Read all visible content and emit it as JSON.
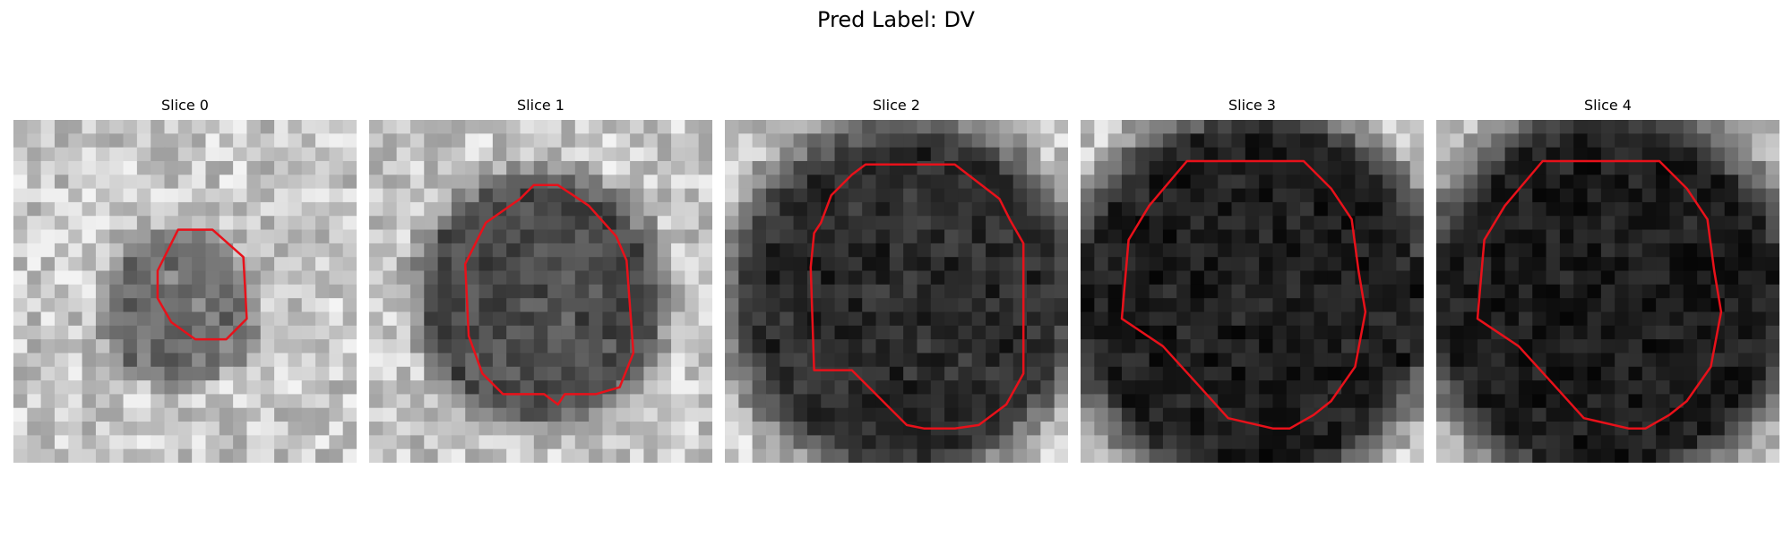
{
  "figure": {
    "title": "Pred Label: DV",
    "contour_color": "#e8111a",
    "colormap": "grayscale"
  },
  "slices": [
    {
      "title": "Slice 0",
      "blob_radius": 0.2,
      "blob_cx": 0.48,
      "blob_cy": 0.55,
      "darkness": 0.45,
      "seed": 11,
      "contour": [
        [
          0.48,
          0.32
        ],
        [
          0.58,
          0.32
        ],
        [
          0.67,
          0.4
        ],
        [
          0.68,
          0.58
        ],
        [
          0.62,
          0.64
        ],
        [
          0.53,
          0.64
        ],
        [
          0.46,
          0.59
        ],
        [
          0.42,
          0.52
        ],
        [
          0.42,
          0.44
        ]
      ]
    },
    {
      "title": "Slice 1",
      "blob_radius": 0.32,
      "blob_cx": 0.5,
      "blob_cy": 0.52,
      "darkness": 0.62,
      "seed": 23,
      "contour": [
        [
          0.48,
          0.19
        ],
        [
          0.55,
          0.19
        ],
        [
          0.64,
          0.25
        ],
        [
          0.72,
          0.34
        ],
        [
          0.75,
          0.41
        ],
        [
          0.77,
          0.68
        ],
        [
          0.73,
          0.78
        ],
        [
          0.66,
          0.8
        ],
        [
          0.57,
          0.8
        ],
        [
          0.55,
          0.83
        ],
        [
          0.51,
          0.8
        ],
        [
          0.39,
          0.8
        ],
        [
          0.33,
          0.74
        ],
        [
          0.29,
          0.63
        ],
        [
          0.28,
          0.42
        ],
        [
          0.34,
          0.3
        ],
        [
          0.44,
          0.23
        ]
      ]
    },
    {
      "title": "Slice 2",
      "blob_radius": 0.45,
      "blob_cx": 0.52,
      "blob_cy": 0.52,
      "darkness": 0.78,
      "seed": 37,
      "contour": [
        [
          0.41,
          0.13
        ],
        [
          0.67,
          0.13
        ],
        [
          0.8,
          0.23
        ],
        [
          0.83,
          0.29
        ],
        [
          0.87,
          0.36
        ],
        [
          0.87,
          0.74
        ],
        [
          0.82,
          0.83
        ],
        [
          0.74,
          0.89
        ],
        [
          0.67,
          0.9
        ],
        [
          0.58,
          0.9
        ],
        [
          0.53,
          0.89
        ],
        [
          0.48,
          0.84
        ],
        [
          0.44,
          0.8
        ],
        [
          0.41,
          0.77
        ],
        [
          0.37,
          0.73
        ],
        [
          0.26,
          0.73
        ],
        [
          0.25,
          0.43
        ],
        [
          0.26,
          0.33
        ],
        [
          0.28,
          0.3
        ],
        [
          0.31,
          0.22
        ],
        [
          0.37,
          0.16
        ]
      ]
    },
    {
      "title": "Slice 3",
      "blob_radius": 0.48,
      "blob_cx": 0.5,
      "blob_cy": 0.52,
      "darkness": 0.85,
      "seed": 41,
      "contour": [
        [
          0.31,
          0.12
        ],
        [
          0.65,
          0.12
        ],
        [
          0.73,
          0.2
        ],
        [
          0.79,
          0.29
        ],
        [
          0.81,
          0.44
        ],
        [
          0.83,
          0.56
        ],
        [
          0.8,
          0.72
        ],
        [
          0.73,
          0.82
        ],
        [
          0.68,
          0.86
        ],
        [
          0.61,
          0.9
        ],
        [
          0.56,
          0.9
        ],
        [
          0.43,
          0.87
        ],
        [
          0.34,
          0.77
        ],
        [
          0.24,
          0.66
        ],
        [
          0.12,
          0.58
        ],
        [
          0.14,
          0.35
        ],
        [
          0.2,
          0.25
        ]
      ]
    },
    {
      "title": "Slice 4",
      "blob_radius": 0.48,
      "blob_cx": 0.5,
      "blob_cy": 0.52,
      "darkness": 0.86,
      "seed": 53,
      "contour": [
        [
          0.31,
          0.12
        ],
        [
          0.65,
          0.12
        ],
        [
          0.73,
          0.2
        ],
        [
          0.79,
          0.29
        ],
        [
          0.81,
          0.44
        ],
        [
          0.83,
          0.56
        ],
        [
          0.8,
          0.72
        ],
        [
          0.73,
          0.82
        ],
        [
          0.68,
          0.86
        ],
        [
          0.61,
          0.9
        ],
        [
          0.56,
          0.9
        ],
        [
          0.43,
          0.87
        ],
        [
          0.34,
          0.77
        ],
        [
          0.24,
          0.66
        ],
        [
          0.12,
          0.58
        ],
        [
          0.14,
          0.35
        ],
        [
          0.2,
          0.25
        ]
      ]
    }
  ]
}
